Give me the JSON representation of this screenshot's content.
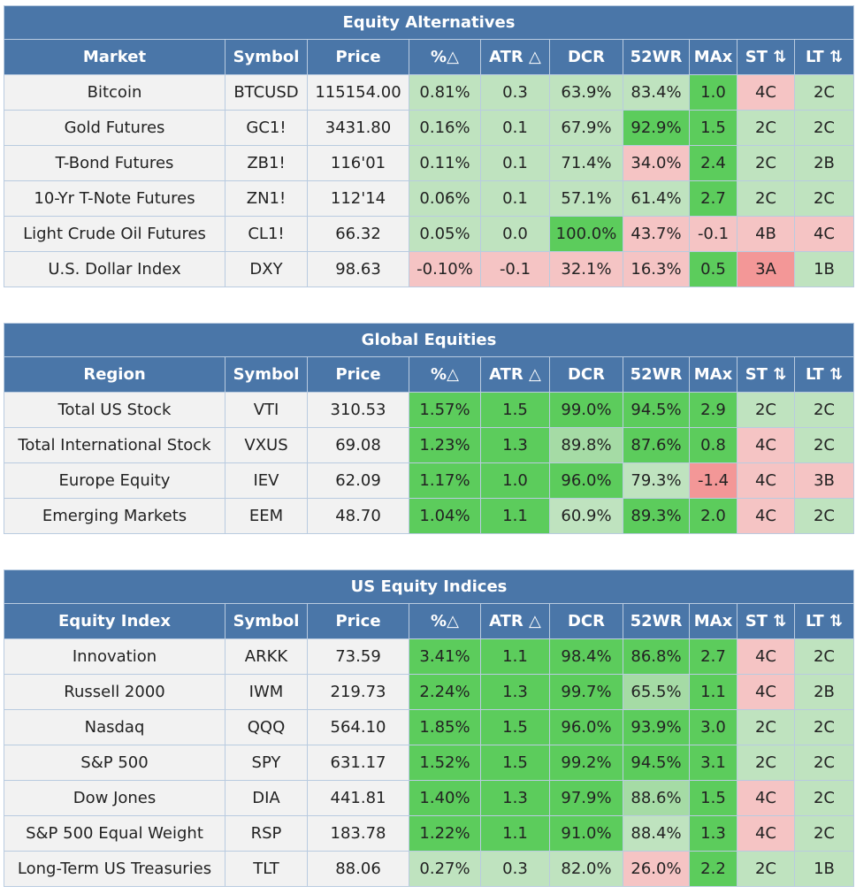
{
  "columns": [
    "%△",
    "ATR △",
    "DCR",
    "52WR",
    "MAx",
    "ST ⇅",
    "LT ⇅"
  ],
  "colors": {
    "header_bg": "#4a76a8",
    "label_bg": "#f2f2f2",
    "strong_green": "#5ccc5c",
    "medium_green": "#a5dba5",
    "light_green": "#bfe3bf",
    "light_red": "#f5c4c4",
    "strong_red": "#f39797"
  },
  "sections": [
    {
      "title": "Equity Alternatives",
      "first_col": "Market",
      "sym_col": "Symbol",
      "price_col": "Price",
      "rows": [
        {
          "name": "Bitcoin",
          "symbol": "BTCUSD",
          "price": "115154.00",
          "cells": [
            {
              "v": "0.81%",
              "c": "lg"
            },
            {
              "v": "0.3",
              "c": "lg"
            },
            {
              "v": "63.9%",
              "c": "lg"
            },
            {
              "v": "83.4%",
              "c": "lg"
            },
            {
              "v": "1.0",
              "c": "hg"
            },
            {
              "v": "4C",
              "c": "lr"
            },
            {
              "v": "2C",
              "c": "lg"
            }
          ]
        },
        {
          "name": "Gold Futures",
          "symbol": "GC1!",
          "price": "3431.80",
          "cells": [
            {
              "v": "0.16%",
              "c": "lg"
            },
            {
              "v": "0.1",
              "c": "lg"
            },
            {
              "v": "67.9%",
              "c": "lg"
            },
            {
              "v": "92.9%",
              "c": "hg"
            },
            {
              "v": "1.5",
              "c": "hg"
            },
            {
              "v": "2C",
              "c": "lg"
            },
            {
              "v": "2C",
              "c": "lg"
            }
          ]
        },
        {
          "name": "T-Bond Futures",
          "symbol": "ZB1!",
          "price": "116'01",
          "cells": [
            {
              "v": "0.11%",
              "c": "lg"
            },
            {
              "v": "0.1",
              "c": "lg"
            },
            {
              "v": "71.4%",
              "c": "lg"
            },
            {
              "v": "34.0%",
              "c": "lr"
            },
            {
              "v": "2.4",
              "c": "hg"
            },
            {
              "v": "2C",
              "c": "lg"
            },
            {
              "v": "2B",
              "c": "lg"
            }
          ]
        },
        {
          "name": "10-Yr T-Note Futures",
          "symbol": "ZN1!",
          "price": "112'14",
          "cells": [
            {
              "v": "0.06%",
              "c": "lg"
            },
            {
              "v": "0.1",
              "c": "lg"
            },
            {
              "v": "57.1%",
              "c": "lg"
            },
            {
              "v": "61.4%",
              "c": "lg"
            },
            {
              "v": "2.7",
              "c": "hg"
            },
            {
              "v": "2C",
              "c": "lg"
            },
            {
              "v": "2C",
              "c": "lg"
            }
          ]
        },
        {
          "name": "Light Crude Oil Futures",
          "symbol": "CL1!",
          "price": "66.32",
          "cells": [
            {
              "v": "0.05%",
              "c": "lg"
            },
            {
              "v": "0.0",
              "c": "lg"
            },
            {
              "v": "100.0%",
              "c": "hg"
            },
            {
              "v": "43.7%",
              "c": "lr"
            },
            {
              "v": "-0.1",
              "c": "lr"
            },
            {
              "v": "4B",
              "c": "lr"
            },
            {
              "v": "4C",
              "c": "lr"
            }
          ]
        },
        {
          "name": "U.S. Dollar Index",
          "symbol": "DXY",
          "price": "98.63",
          "cells": [
            {
              "v": "-0.10%",
              "c": "lr"
            },
            {
              "v": "-0.1",
              "c": "lr"
            },
            {
              "v": "32.1%",
              "c": "lr"
            },
            {
              "v": "16.3%",
              "c": "lr"
            },
            {
              "v": "0.5",
              "c": "hg"
            },
            {
              "v": "3A",
              "c": "hr"
            },
            {
              "v": "1B",
              "c": "lg"
            }
          ]
        }
      ]
    },
    {
      "title": "Global Equities",
      "first_col": "Region",
      "sym_col": "Symbol",
      "price_col": "Price",
      "rows": [
        {
          "name": "Total US Stock",
          "symbol": "VTI",
          "price": "310.53",
          "cells": [
            {
              "v": "1.57%",
              "c": "hg"
            },
            {
              "v": "1.5",
              "c": "hg"
            },
            {
              "v": "99.0%",
              "c": "hg"
            },
            {
              "v": "94.5%",
              "c": "hg"
            },
            {
              "v": "2.9",
              "c": "hg"
            },
            {
              "v": "2C",
              "c": "lg"
            },
            {
              "v": "2C",
              "c": "lg"
            }
          ]
        },
        {
          "name": "Total International Stock",
          "symbol": "VXUS",
          "price": "69.08",
          "cells": [
            {
              "v": "1.23%",
              "c": "hg"
            },
            {
              "v": "1.3",
              "c": "hg"
            },
            {
              "v": "89.8%",
              "c": "mg"
            },
            {
              "v": "87.6%",
              "c": "hg"
            },
            {
              "v": "0.8",
              "c": "hg"
            },
            {
              "v": "4C",
              "c": "lr"
            },
            {
              "v": "2C",
              "c": "lg"
            }
          ]
        },
        {
          "name": "Europe Equity",
          "symbol": "IEV",
          "price": "62.09",
          "cells": [
            {
              "v": "1.17%",
              "c": "hg"
            },
            {
              "v": "1.0",
              "c": "hg"
            },
            {
              "v": "96.0%",
              "c": "hg"
            },
            {
              "v": "79.3%",
              "c": "lg"
            },
            {
              "v": "-1.4",
              "c": "hr"
            },
            {
              "v": "4C",
              "c": "lr"
            },
            {
              "v": "3B",
              "c": "lr"
            }
          ]
        },
        {
          "name": "Emerging Markets",
          "symbol": "EEM",
          "price": "48.70",
          "cells": [
            {
              "v": "1.04%",
              "c": "hg"
            },
            {
              "v": "1.1",
              "c": "hg"
            },
            {
              "v": "60.9%",
              "c": "lg"
            },
            {
              "v": "89.3%",
              "c": "hg"
            },
            {
              "v": "2.0",
              "c": "hg"
            },
            {
              "v": "4C",
              "c": "lr"
            },
            {
              "v": "2C",
              "c": "lg"
            }
          ]
        }
      ]
    },
    {
      "title": "US Equity Indices",
      "first_col": "Equity Index",
      "sym_col": "Symbol",
      "price_col": "Price",
      "rows": [
        {
          "name": "Innovation",
          "symbol": "ARKK",
          "price": "73.59",
          "cells": [
            {
              "v": "3.41%",
              "c": "hg"
            },
            {
              "v": "1.1",
              "c": "hg"
            },
            {
              "v": "98.4%",
              "c": "hg"
            },
            {
              "v": "86.8%",
              "c": "hg"
            },
            {
              "v": "2.7",
              "c": "hg"
            },
            {
              "v": "4C",
              "c": "lr"
            },
            {
              "v": "2C",
              "c": "lg"
            }
          ]
        },
        {
          "name": "Russell 2000",
          "symbol": "IWM",
          "price": "219.73",
          "cells": [
            {
              "v": "2.24%",
              "c": "hg"
            },
            {
              "v": "1.3",
              "c": "hg"
            },
            {
              "v": "99.7%",
              "c": "hg"
            },
            {
              "v": "65.5%",
              "c": "mg"
            },
            {
              "v": "1.1",
              "c": "hg"
            },
            {
              "v": "4C",
              "c": "lr"
            },
            {
              "v": "2B",
              "c": "lg"
            }
          ]
        },
        {
          "name": "Nasdaq",
          "symbol": "QQQ",
          "price": "564.10",
          "cells": [
            {
              "v": "1.85%",
              "c": "hg"
            },
            {
              "v": "1.5",
              "c": "hg"
            },
            {
              "v": "96.0%",
              "c": "hg"
            },
            {
              "v": "93.9%",
              "c": "hg"
            },
            {
              "v": "3.0",
              "c": "hg"
            },
            {
              "v": "2C",
              "c": "lg"
            },
            {
              "v": "2C",
              "c": "lg"
            }
          ]
        },
        {
          "name": "S&P 500",
          "symbol": "SPY",
          "price": "631.17",
          "cells": [
            {
              "v": "1.52%",
              "c": "hg"
            },
            {
              "v": "1.5",
              "c": "hg"
            },
            {
              "v": "99.2%",
              "c": "hg"
            },
            {
              "v": "94.5%",
              "c": "hg"
            },
            {
              "v": "3.1",
              "c": "hg"
            },
            {
              "v": "2C",
              "c": "lg"
            },
            {
              "v": "2C",
              "c": "lg"
            }
          ]
        },
        {
          "name": "Dow Jones",
          "symbol": "DIA",
          "price": "441.81",
          "cells": [
            {
              "v": "1.40%",
              "c": "hg"
            },
            {
              "v": "1.3",
              "c": "hg"
            },
            {
              "v": "97.9%",
              "c": "hg"
            },
            {
              "v": "88.6%",
              "c": "mg"
            },
            {
              "v": "1.5",
              "c": "hg"
            },
            {
              "v": "4C",
              "c": "lr"
            },
            {
              "v": "2C",
              "c": "lg"
            }
          ]
        },
        {
          "name": "S&P 500 Equal Weight",
          "symbol": "RSP",
          "price": "183.78",
          "cells": [
            {
              "v": "1.22%",
              "c": "hg"
            },
            {
              "v": "1.1",
              "c": "hg"
            },
            {
              "v": "91.0%",
              "c": "hg"
            },
            {
              "v": "88.4%",
              "c": "lg"
            },
            {
              "v": "1.3",
              "c": "hg"
            },
            {
              "v": "4C",
              "c": "lr"
            },
            {
              "v": "2C",
              "c": "lg"
            }
          ]
        },
        {
          "name": "Long-Term US Treasuries",
          "symbol": "TLT",
          "price": "88.06",
          "cells": [
            {
              "v": "0.27%",
              "c": "lg"
            },
            {
              "v": "0.3",
              "c": "lg"
            },
            {
              "v": "82.0%",
              "c": "lg"
            },
            {
              "v": "26.0%",
              "c": "lr"
            },
            {
              "v": "2.2",
              "c": "hg"
            },
            {
              "v": "2C",
              "c": "lg"
            },
            {
              "v": "1B",
              "c": "lg"
            }
          ]
        }
      ]
    }
  ]
}
